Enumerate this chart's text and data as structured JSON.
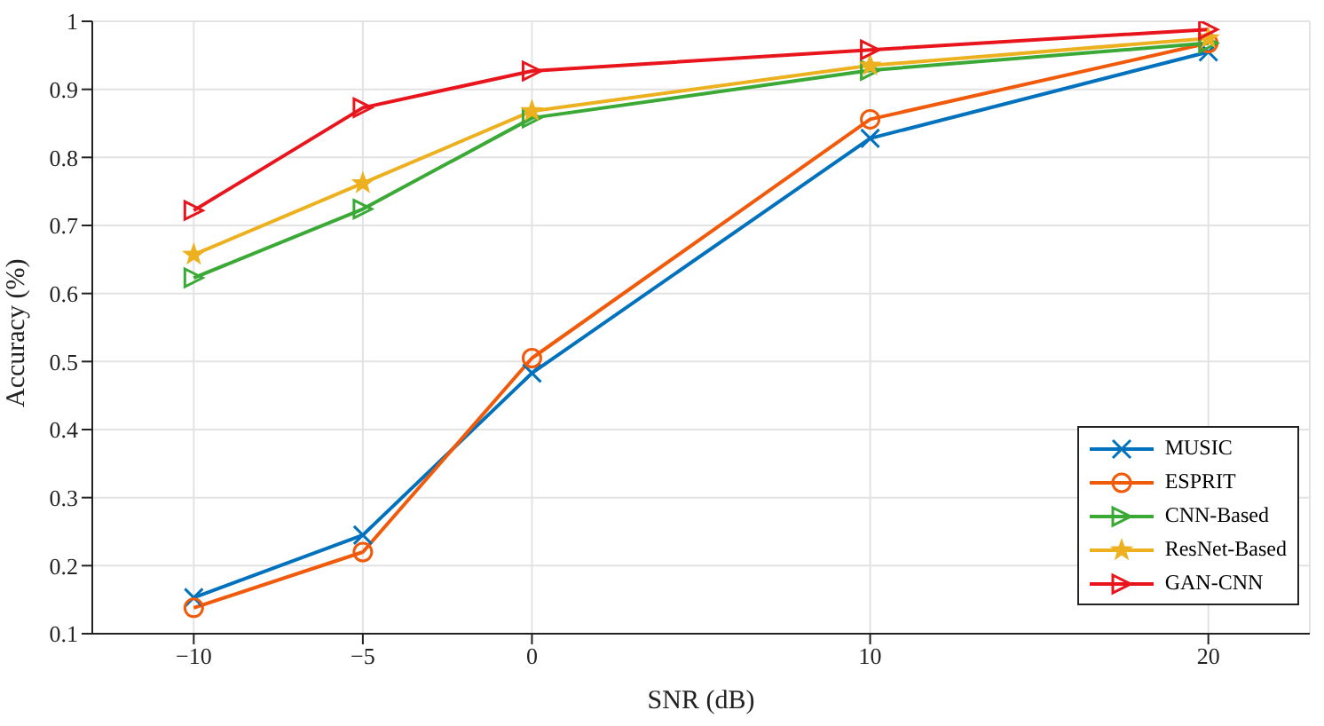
{
  "chart_data": {
    "type": "line",
    "xlabel": "SNR (dB)",
    "ylabel": "Accuracy (%)",
    "x": [
      -10,
      -5,
      0,
      10,
      20
    ],
    "xlim": [
      -13,
      23
    ],
    "xticks": [
      {
        "value": -10,
        "label": "−10"
      },
      {
        "value": -5,
        "label": "−5"
      },
      0,
      10,
      20
    ],
    "ylim": [
      0.1,
      1
    ],
    "yticks": [
      0.1,
      0.2,
      0.3,
      0.4,
      0.5,
      0.6,
      0.7,
      0.8,
      0.9,
      1
    ],
    "grid": true,
    "legend": "bottom right",
    "line_style": "solid",
    "series": [
      {
        "name": "MUSIC",
        "color": "#0072bd",
        "marker": "cross",
        "values": [
          0.153,
          0.245,
          0.483,
          0.828,
          0.955
        ]
      },
      {
        "name": "ESPRIT",
        "color": "#f05a0a",
        "marker": "circle",
        "values": [
          0.138,
          0.22,
          0.505,
          0.856,
          0.968
        ]
      },
      {
        "name": "CNN-Based",
        "color": "#3aa935",
        "marker": "triangle",
        "values": [
          0.623,
          0.724,
          0.858,
          0.928,
          0.968
        ]
      },
      {
        "name": "ResNet-Based",
        "color": "#edb120",
        "marker": "star",
        "values": [
          0.657,
          0.762,
          0.868,
          0.935,
          0.975
        ]
      },
      {
        "name": "GAN-CNN",
        "color": "#e8161c",
        "marker": "triangle",
        "values": [
          0.722,
          0.873,
          0.927,
          0.958,
          0.988
        ]
      }
    ]
  }
}
